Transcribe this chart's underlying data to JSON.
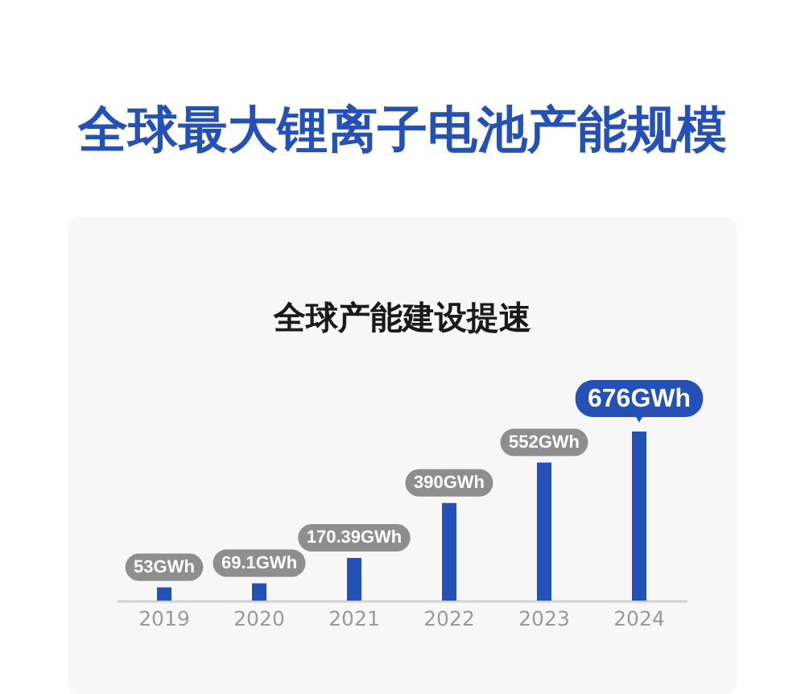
{
  "chart_data": {
    "type": "bar",
    "title": "全球最大锂离子电池产能规模",
    "subtitle": "全球产能建设提速",
    "categories": [
      "2019",
      "2020",
      "2021",
      "2022",
      "2023",
      "2024"
    ],
    "values": [
      53,
      69.1,
      170.39,
      390,
      552,
      676
    ],
    "color": "#2451b8",
    "value_labels": [
      "53GWh",
      "69.1GWh",
      "170.39GWh",
      "390GWh",
      "552GWh",
      "676GWh"
    ]
  }
}
